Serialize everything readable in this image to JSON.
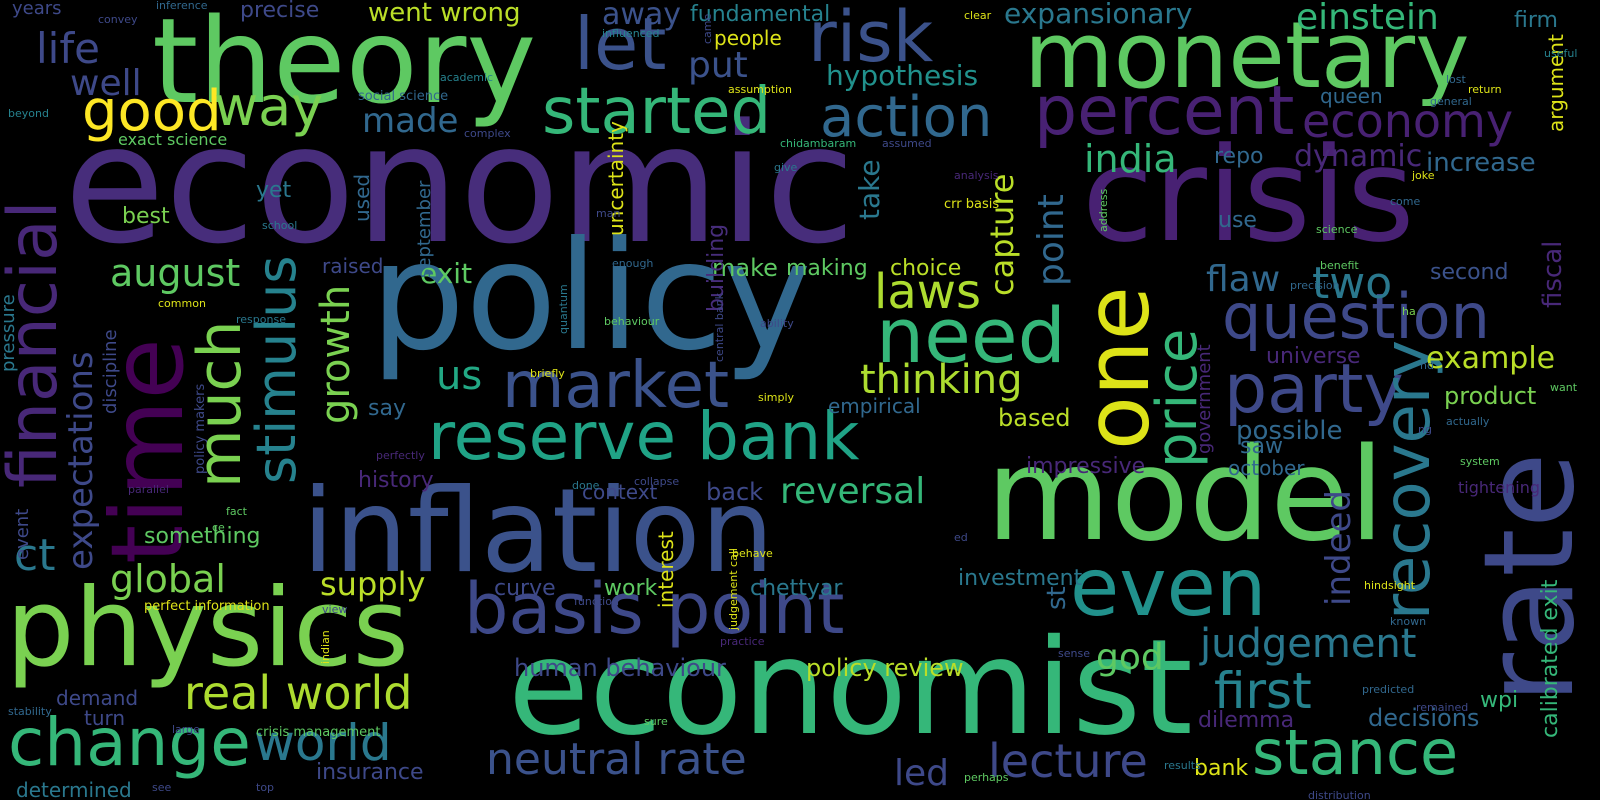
{
  "words": [
    {
      "text": "economic",
      "color": "#472d7b"
    },
    {
      "text": "theory",
      "color": "#5ec962"
    },
    {
      "text": "monetary",
      "color": "#5ec962"
    },
    {
      "text": "crisis",
      "color": "#482173"
    },
    {
      "text": "policy",
      "color": "#31688e"
    },
    {
      "text": "inflation",
      "color": "#3b528b"
    },
    {
      "text": "model",
      "color": "#5ec962"
    },
    {
      "text": "economist",
      "color": "#35b779"
    },
    {
      "text": "physics",
      "color": "#7ad151"
    },
    {
      "text": "rate",
      "color": "#3e4989"
    },
    {
      "text": "time",
      "color": "#440154"
    },
    {
      "text": "financial",
      "color": "#482878"
    },
    {
      "text": "much",
      "color": "#7ad151"
    },
    {
      "text": "one",
      "color": "#dde318"
    },
    {
      "text": "risk",
      "color": "#3b528b"
    },
    {
      "text": "let",
      "color": "#3b528b"
    },
    {
      "text": "started",
      "color": "#35b779"
    },
    {
      "text": "action",
      "color": "#31688e"
    },
    {
      "text": "percent",
      "color": "#482173"
    },
    {
      "text": "economy",
      "color": "#482173"
    },
    {
      "text": "good",
      "color": "#fde725"
    },
    {
      "text": "way",
      "color": "#7ad151"
    },
    {
      "text": "life",
      "color": "#3e4989"
    },
    {
      "text": "well",
      "color": "#3e4989"
    },
    {
      "text": "stimulus",
      "color": "#26828e"
    },
    {
      "text": "growth",
      "color": "#7ad151"
    },
    {
      "text": "market",
      "color": "#3b528b"
    },
    {
      "text": "reserve bank",
      "color": "#20a386"
    },
    {
      "text": "basis point",
      "color": "#3e4989"
    },
    {
      "text": "need",
      "color": "#35b779"
    },
    {
      "text": "laws",
      "color": "#addc30"
    },
    {
      "text": "thinking",
      "color": "#addc30"
    },
    {
      "text": "price",
      "color": "#35b779"
    },
    {
      "text": "question",
      "color": "#3e4989"
    },
    {
      "text": "party",
      "color": "#3e4989"
    },
    {
      "text": "recovery",
      "color": "#2a788e"
    },
    {
      "text": "even",
      "color": "#21918c"
    },
    {
      "text": "stance",
      "color": "#35b779"
    },
    {
      "text": "change",
      "color": "#35b779"
    },
    {
      "text": "world",
      "color": "#2a788e"
    },
    {
      "text": "real world",
      "color": "#addc30"
    },
    {
      "text": "global",
      "color": "#7ad151"
    },
    {
      "text": "supply",
      "color": "#bade28"
    },
    {
      "text": "neutral rate",
      "color": "#3b528b"
    },
    {
      "text": "expectations",
      "color": "#3e4989"
    },
    {
      "text": "august",
      "color": "#5ec962"
    },
    {
      "text": "ct",
      "color": "#2a788e"
    },
    {
      "text": "us",
      "color": "#22a884"
    },
    {
      "text": "india",
      "color": "#35b779"
    },
    {
      "text": "dynamic",
      "color": "#482878"
    },
    {
      "text": "increase",
      "color": "#31688e"
    },
    {
      "text": "two",
      "color": "#2a788e"
    },
    {
      "text": "flaw",
      "color": "#31688e"
    },
    {
      "text": "first",
      "color": "#26828e"
    },
    {
      "text": "judgement",
      "color": "#2a788e"
    },
    {
      "text": "lecture",
      "color": "#3e4989"
    },
    {
      "text": "god",
      "color": "#5ec962"
    },
    {
      "text": "reversal",
      "color": "#35b779"
    },
    {
      "text": "hypothesis",
      "color": "#21918c"
    },
    {
      "text": "made",
      "color": "#31688e"
    },
    {
      "text": "put",
      "color": "#3b528b"
    },
    {
      "text": "einstein",
      "color": "#35b779"
    },
    {
      "text": "expansionary",
      "color": "#2a788e"
    },
    {
      "text": "fundamental",
      "color": "#26828e"
    },
    {
      "text": "went wrong",
      "color": "#bade28"
    },
    {
      "text": "precise",
      "color": "#3e4989"
    },
    {
      "text": "away",
      "color": "#3b528b"
    },
    {
      "text": "people",
      "color": "#dde318"
    },
    {
      "text": "firm",
      "color": "#2a788e"
    },
    {
      "text": "argument",
      "color": "#dde318"
    },
    {
      "text": "fiscal",
      "color": "#482878"
    },
    {
      "text": "calibrated exit",
      "color": "#35b779"
    },
    {
      "text": "queen",
      "color": "#31688e"
    },
    {
      "text": "repo",
      "color": "#31688e"
    },
    {
      "text": "use",
      "color": "#31688e"
    },
    {
      "text": "second",
      "color": "#3b528b"
    },
    {
      "text": "example",
      "color": "#bade28"
    },
    {
      "text": "universe",
      "color": "#482878"
    },
    {
      "text": "product",
      "color": "#7ad151"
    },
    {
      "text": "indeed",
      "color": "#3e4989"
    },
    {
      "text": "wpi",
      "color": "#35b779"
    },
    {
      "text": "decisions",
      "color": "#31688e"
    },
    {
      "text": "bank",
      "color": "#dde318"
    },
    {
      "text": "dilemma",
      "color": "#482878"
    },
    {
      "text": "tightening",
      "color": "#482878"
    },
    {
      "text": "possible",
      "color": "#31688e"
    },
    {
      "text": "saw",
      "color": "#31688e"
    },
    {
      "text": "october",
      "color": "#31688e"
    },
    {
      "text": "impressive",
      "color": "#482878"
    },
    {
      "text": "government",
      "color": "#482878"
    },
    {
      "text": "based",
      "color": "#bade28"
    },
    {
      "text": "st",
      "color": "#31688e"
    },
    {
      "text": "point",
      "color": "#31688e"
    },
    {
      "text": "capture",
      "color": "#bade28"
    },
    {
      "text": "empirical",
      "color": "#31688e"
    },
    {
      "text": "choice",
      "color": "#bade28"
    },
    {
      "text": "making",
      "color": "#5ec962"
    },
    {
      "text": "make",
      "color": "#5ec962"
    },
    {
      "text": "take",
      "color": "#2a788e"
    },
    {
      "text": "building",
      "color": "#472d7b"
    },
    {
      "text": "uncertainty",
      "color": "#dde318"
    },
    {
      "text": "exit",
      "color": "#5ec962"
    },
    {
      "text": "raised",
      "color": "#3e4989"
    },
    {
      "text": "history",
      "color": "#482878"
    },
    {
      "text": "context",
      "color": "#3e4989"
    },
    {
      "text": "back",
      "color": "#3e4989"
    },
    {
      "text": "curve",
      "color": "#3e4989"
    },
    {
      "text": "work",
      "color": "#5ec962"
    },
    {
      "text": "interest",
      "color": "#dde318"
    },
    {
      "text": "chettyar",
      "color": "#2a788e"
    },
    {
      "text": "investment",
      "color": "#2a788e"
    },
    {
      "text": "human behaviour",
      "color": "#3e4989"
    },
    {
      "text": "policy review",
      "color": "#bade28"
    },
    {
      "text": "led",
      "color": "#3e4989"
    },
    {
      "text": "insurance",
      "color": "#3e4989"
    },
    {
      "text": "something",
      "color": "#5ec962"
    },
    {
      "text": "say",
      "color": "#31688e"
    },
    {
      "text": "september",
      "color": "#31688e"
    },
    {
      "text": "used",
      "color": "#31688e"
    },
    {
      "text": "yet",
      "color": "#2a788e"
    },
    {
      "text": "best",
      "color": "#7ad151"
    },
    {
      "text": "exact science",
      "color": "#5ec962"
    },
    {
      "text": "years",
      "color": "#3e4989"
    },
    {
      "text": "turn",
      "color": "#3e4989"
    },
    {
      "text": "demand",
      "color": "#3e4989"
    },
    {
      "text": "determined",
      "color": "#2a788e"
    },
    {
      "text": "discipline",
      "color": "#3e4989"
    },
    {
      "text": "pressure",
      "color": "#2a788e"
    },
    {
      "text": "event",
      "color": "#3e4989"
    },
    {
      "text": "perfect information",
      "color": "#dde318"
    },
    {
      "text": "crisis management",
      "color": "#5ec962"
    },
    {
      "text": "policy makers",
      "color": "#3e4989"
    },
    {
      "text": "social science",
      "color": "#31688e"
    },
    {
      "text": "academic",
      "color": "#26828e"
    },
    {
      "text": "influenced",
      "color": "#26828e"
    },
    {
      "text": "convey",
      "color": "#3e4989"
    },
    {
      "text": "inference",
      "color": "#31688e"
    },
    {
      "text": "clear",
      "color": "#dde318"
    },
    {
      "text": "useful",
      "color": "#26828e"
    },
    {
      "text": "lost",
      "color": "#31688e"
    },
    {
      "text": "return",
      "color": "#dde318"
    },
    {
      "text": "general",
      "color": "#31688e"
    },
    {
      "text": "joke",
      "color": "#dde318"
    },
    {
      "text": "come",
      "color": "#31688e"
    },
    {
      "text": "science",
      "color": "#5ec962"
    },
    {
      "text": "address",
      "color": "#5ec962"
    },
    {
      "text": "benefit",
      "color": "#5ec962"
    },
    {
      "text": "precision",
      "color": "#31688e"
    },
    {
      "text": "ha",
      "color": "#7ad151"
    },
    {
      "text": "nd",
      "color": "#31688e"
    },
    {
      "text": "want",
      "color": "#5ec962"
    },
    {
      "text": "actually",
      "color": "#31688e"
    },
    {
      "text": "system",
      "color": "#5ec962"
    },
    {
      "text": "hindsight",
      "color": "#dde318"
    },
    {
      "text": "known",
      "color": "#31688e"
    },
    {
      "text": "predicted",
      "color": "#31688e"
    },
    {
      "text": "remained",
      "color": "#3e4989"
    },
    {
      "text": "distribution",
      "color": "#3e4989"
    },
    {
      "text": "results",
      "color": "#2a788e"
    },
    {
      "text": "sense",
      "color": "#3e4989"
    },
    {
      "text": "perhaps",
      "color": "#5ec962"
    },
    {
      "text": "sure",
      "color": "#5ec962"
    },
    {
      "text": "top",
      "color": "#3e4989"
    },
    {
      "text": "see",
      "color": "#3e4989"
    },
    {
      "text": "large",
      "color": "#3e4989"
    },
    {
      "text": "stability",
      "color": "#31688e"
    },
    {
      "text": "indian",
      "color": "#dde318"
    },
    {
      "text": "view",
      "color": "#3e4989"
    },
    {
      "text": "function",
      "color": "#3e4989"
    },
    {
      "text": "judgement call",
      "color": "#dde318"
    },
    {
      "text": "behave",
      "color": "#dde318"
    },
    {
      "text": "collapse",
      "color": "#3e4989"
    },
    {
      "text": "done",
      "color": "#2a788e"
    },
    {
      "text": "fact",
      "color": "#5ec962"
    },
    {
      "text": "ce",
      "color": "#5ec962"
    },
    {
      "text": "parallel",
      "color": "#482878"
    },
    {
      "text": "perfectly",
      "color": "#482878"
    },
    {
      "text": "simply",
      "color": "#dde318"
    },
    {
      "text": "briefly",
      "color": "#dde318"
    },
    {
      "text": "quantum",
      "color": "#2a788e"
    },
    {
      "text": "behaviour",
      "color": "#5ec962"
    },
    {
      "text": "central bank",
      "color": "#3e4989"
    },
    {
      "text": "ability",
      "color": "#3e4989"
    },
    {
      "text": "response",
      "color": "#2a788e"
    },
    {
      "text": "common",
      "color": "#dde318"
    },
    {
      "text": "enough",
      "color": "#31688e"
    },
    {
      "text": "man",
      "color": "#3e4989"
    },
    {
      "text": "school",
      "color": "#2a788e"
    },
    {
      "text": "give",
      "color": "#2a788e"
    },
    {
      "text": "chidambaram",
      "color": "#35b779"
    },
    {
      "text": "assumed",
      "color": "#3e4989"
    },
    {
      "text": "crr basis",
      "color": "#dde318"
    },
    {
      "text": "analysis",
      "color": "#482878"
    },
    {
      "text": "assumption",
      "color": "#dde318"
    },
    {
      "text": "complex",
      "color": "#3e4989"
    },
    {
      "text": "beyond",
      "color": "#26828e"
    },
    {
      "text": "came",
      "color": "#3e4989"
    },
    {
      "text": "ed",
      "color": "#3e4989"
    },
    {
      "text": "practice",
      "color": "#482878"
    },
    {
      "text": "ng",
      "color": "#3e4989"
    }
  ]
}
